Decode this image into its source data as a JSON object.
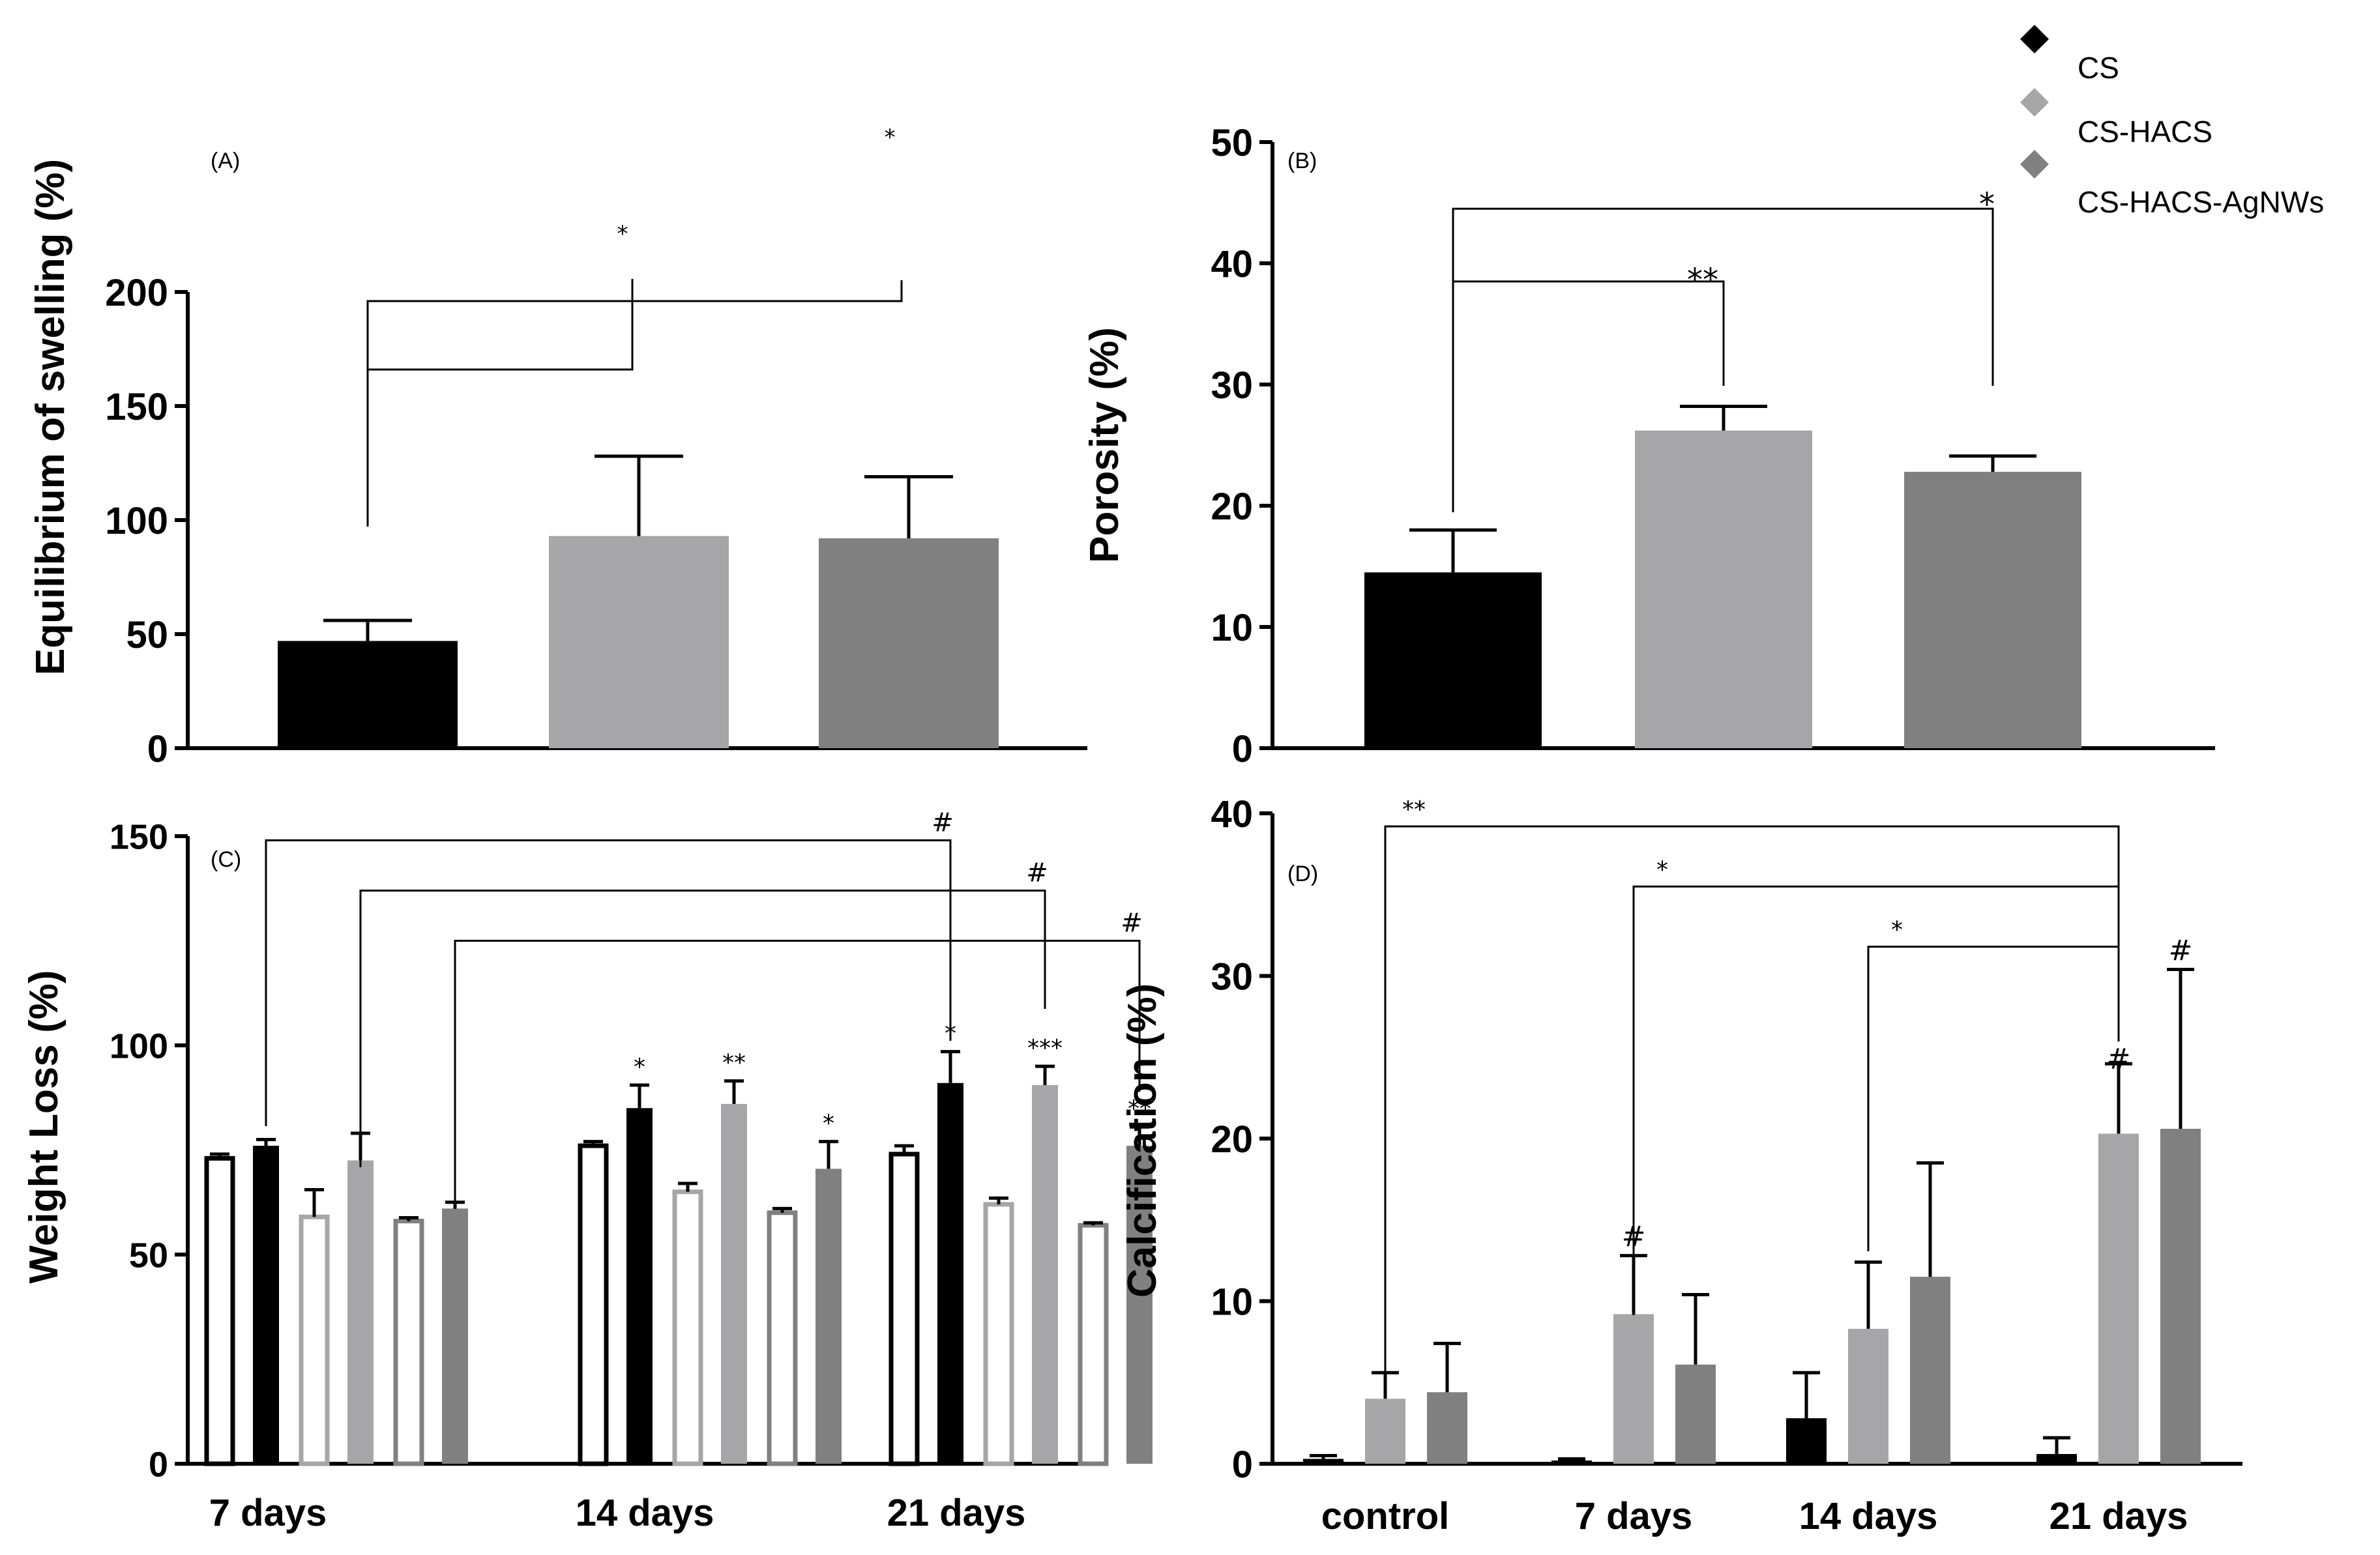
{
  "legend": {
    "items": [
      {
        "label": "CS",
        "color": "#000000",
        "marker": "diamond"
      },
      {
        "label": "CS-HACS",
        "color": "#a6a6a8",
        "marker": "diamond"
      },
      {
        "label": "CS-HACS-AgNWs",
        "color": "#808080",
        "marker": "diamond"
      }
    ]
  },
  "chart_data": [
    {
      "panel": "(A)",
      "type": "bar",
      "ylabel": "Equilibrium of swelling (%)",
      "ylim": [
        0,
        200
      ],
      "yticks": [
        0,
        50,
        100,
        150,
        200
      ],
      "series": [
        {
          "name": "CS",
          "value": 47,
          "error": 9,
          "color": "#000000"
        },
        {
          "name": "CS-HACS",
          "value": 93,
          "error": 35,
          "color": "#a6a6a8"
        },
        {
          "name": "CS-HACS-AgNWs",
          "value": 92,
          "error": 27,
          "color": "#808080"
        }
      ],
      "significance": [
        {
          "from": "CS",
          "to": "CS-HACS",
          "label": "*",
          "level": 166
        },
        {
          "from": "CS",
          "to": "CS-HACS-AgNWs",
          "label": "*",
          "level": 196
        }
      ]
    },
    {
      "panel": "(B)",
      "type": "bar",
      "ylabel": "Porosity (%)",
      "ylim": [
        0,
        50
      ],
      "yticks": [
        0,
        10,
        20,
        30,
        40,
        50
      ],
      "series": [
        {
          "name": "CS",
          "value": 14.5,
          "error": 3.5,
          "color": "#000000"
        },
        {
          "name": "CS-HACS",
          "value": 26.2,
          "error": 2,
          "color": "#a6a6a8"
        },
        {
          "name": "CS-HACS-AgNWs",
          "value": 22.8,
          "error": 1.3,
          "color": "#808080"
        }
      ],
      "significance": [
        {
          "from": "CS",
          "to": "CS-HACS",
          "label": "**",
          "level": 38.5
        },
        {
          "from": "CS",
          "to": "CS-HACS-AgNWs",
          "label": "*",
          "level": 44.5
        }
      ]
    },
    {
      "panel": "(C)",
      "type": "bar",
      "ylabel": "Weight Loss (%)",
      "ylim": [
        0,
        150
      ],
      "yticks": [
        0,
        50,
        100,
        150
      ],
      "categories": [
        "7 days",
        "14 days",
        "21 days"
      ],
      "series": [
        {
          "name": "CS (open)",
          "style": "outline",
          "color": "#000000",
          "values": [
            73,
            76,
            74
          ],
          "errors": [
            1,
            1,
            2
          ],
          "labels": [
            "",
            "",
            ""
          ]
        },
        {
          "name": "CS",
          "style": "filled",
          "color": "#000000",
          "values": [
            76,
            85,
            91
          ],
          "errors": [
            1.5,
            5.5,
            7.5
          ],
          "labels": [
            "",
            "*",
            "*"
          ]
        },
        {
          "name": "CS-HACS (open)",
          "style": "outline",
          "color": "#a6a6a8",
          "values": [
            59,
            65,
            62
          ],
          "errors": [
            6.5,
            2,
            1.5
          ],
          "labels": [
            "",
            "",
            ""
          ]
        },
        {
          "name": "CS-HACS",
          "style": "filled",
          "color": "#a6a6a8",
          "values": [
            72.5,
            86,
            90.5
          ],
          "errors": [
            6.5,
            5.5,
            4.5
          ],
          "labels": [
            "",
            "**",
            "***"
          ]
        },
        {
          "name": "CS-HACS-AgNWs (open)",
          "style": "outline",
          "color": "#808080",
          "values": [
            58,
            60,
            57
          ],
          "errors": [
            0.8,
            1,
            0.6
          ],
          "labels": [
            "",
            "",
            ""
          ]
        },
        {
          "name": "CS-HACS-AgNWs",
          "style": "filled",
          "color": "#808080",
          "values": [
            61,
            70.5,
            76
          ],
          "errors": [
            1.5,
            6.5,
            4.5
          ],
          "labels": [
            "",
            "*",
            "**"
          ]
        }
      ],
      "significance": [
        {
          "from_group": 0,
          "from_bar": 1,
          "to_group": 2,
          "to_bar": 1,
          "label": "#",
          "level": 149
        },
        {
          "from_group": 0,
          "from_bar": 3,
          "to_group": 2,
          "to_bar": 3,
          "label": "#",
          "level": 137
        },
        {
          "from_group": 0,
          "from_bar": 5,
          "to_group": 2,
          "to_bar": 5,
          "label": "#",
          "level": 125
        }
      ]
    },
    {
      "panel": "(D)",
      "type": "bar",
      "ylabel": "Calcification (%)",
      "ylim": [
        0,
        40
      ],
      "yticks": [
        0,
        10,
        20,
        30,
        40
      ],
      "categories": [
        "control",
        "7 days",
        "14 days",
        "21 days"
      ],
      "series": [
        {
          "name": "CS",
          "color": "#000000",
          "values": [
            0.3,
            0.2,
            2.8,
            0.6
          ],
          "errors": [
            0.2,
            0.1,
            2.8,
            1
          ],
          "labels": [
            "",
            "",
            "",
            ""
          ]
        },
        {
          "name": "CS-HACS",
          "color": "#a6a6a8",
          "values": [
            4,
            9.2,
            8.3,
            20.3
          ],
          "errors": [
            1.6,
            3.6,
            4.1,
            4.3
          ],
          "labels": [
            "",
            "#",
            "",
            "#"
          ]
        },
        {
          "name": "CS-HACS-AgNWs",
          "color": "#808080",
          "values": [
            4.4,
            6.1,
            11.5,
            20.6
          ],
          "errors": [
            3,
            4.3,
            7,
            9.8
          ],
          "labels": [
            "",
            "",
            "",
            "#"
          ]
        }
      ],
      "significance": [
        {
          "from_group": 0,
          "from_bar": 1,
          "to_group": 3,
          "to_bar": 1,
          "label": "**",
          "level": 39.2
        },
        {
          "from_group": 1,
          "from_bar": 1,
          "to_group": 3,
          "to_bar": 1,
          "label": "*",
          "level": 35.5
        },
        {
          "from_group": 2,
          "from_bar": 1,
          "to_group": 3,
          "to_bar": 1,
          "label": "*",
          "level": 31.8
        }
      ]
    }
  ]
}
